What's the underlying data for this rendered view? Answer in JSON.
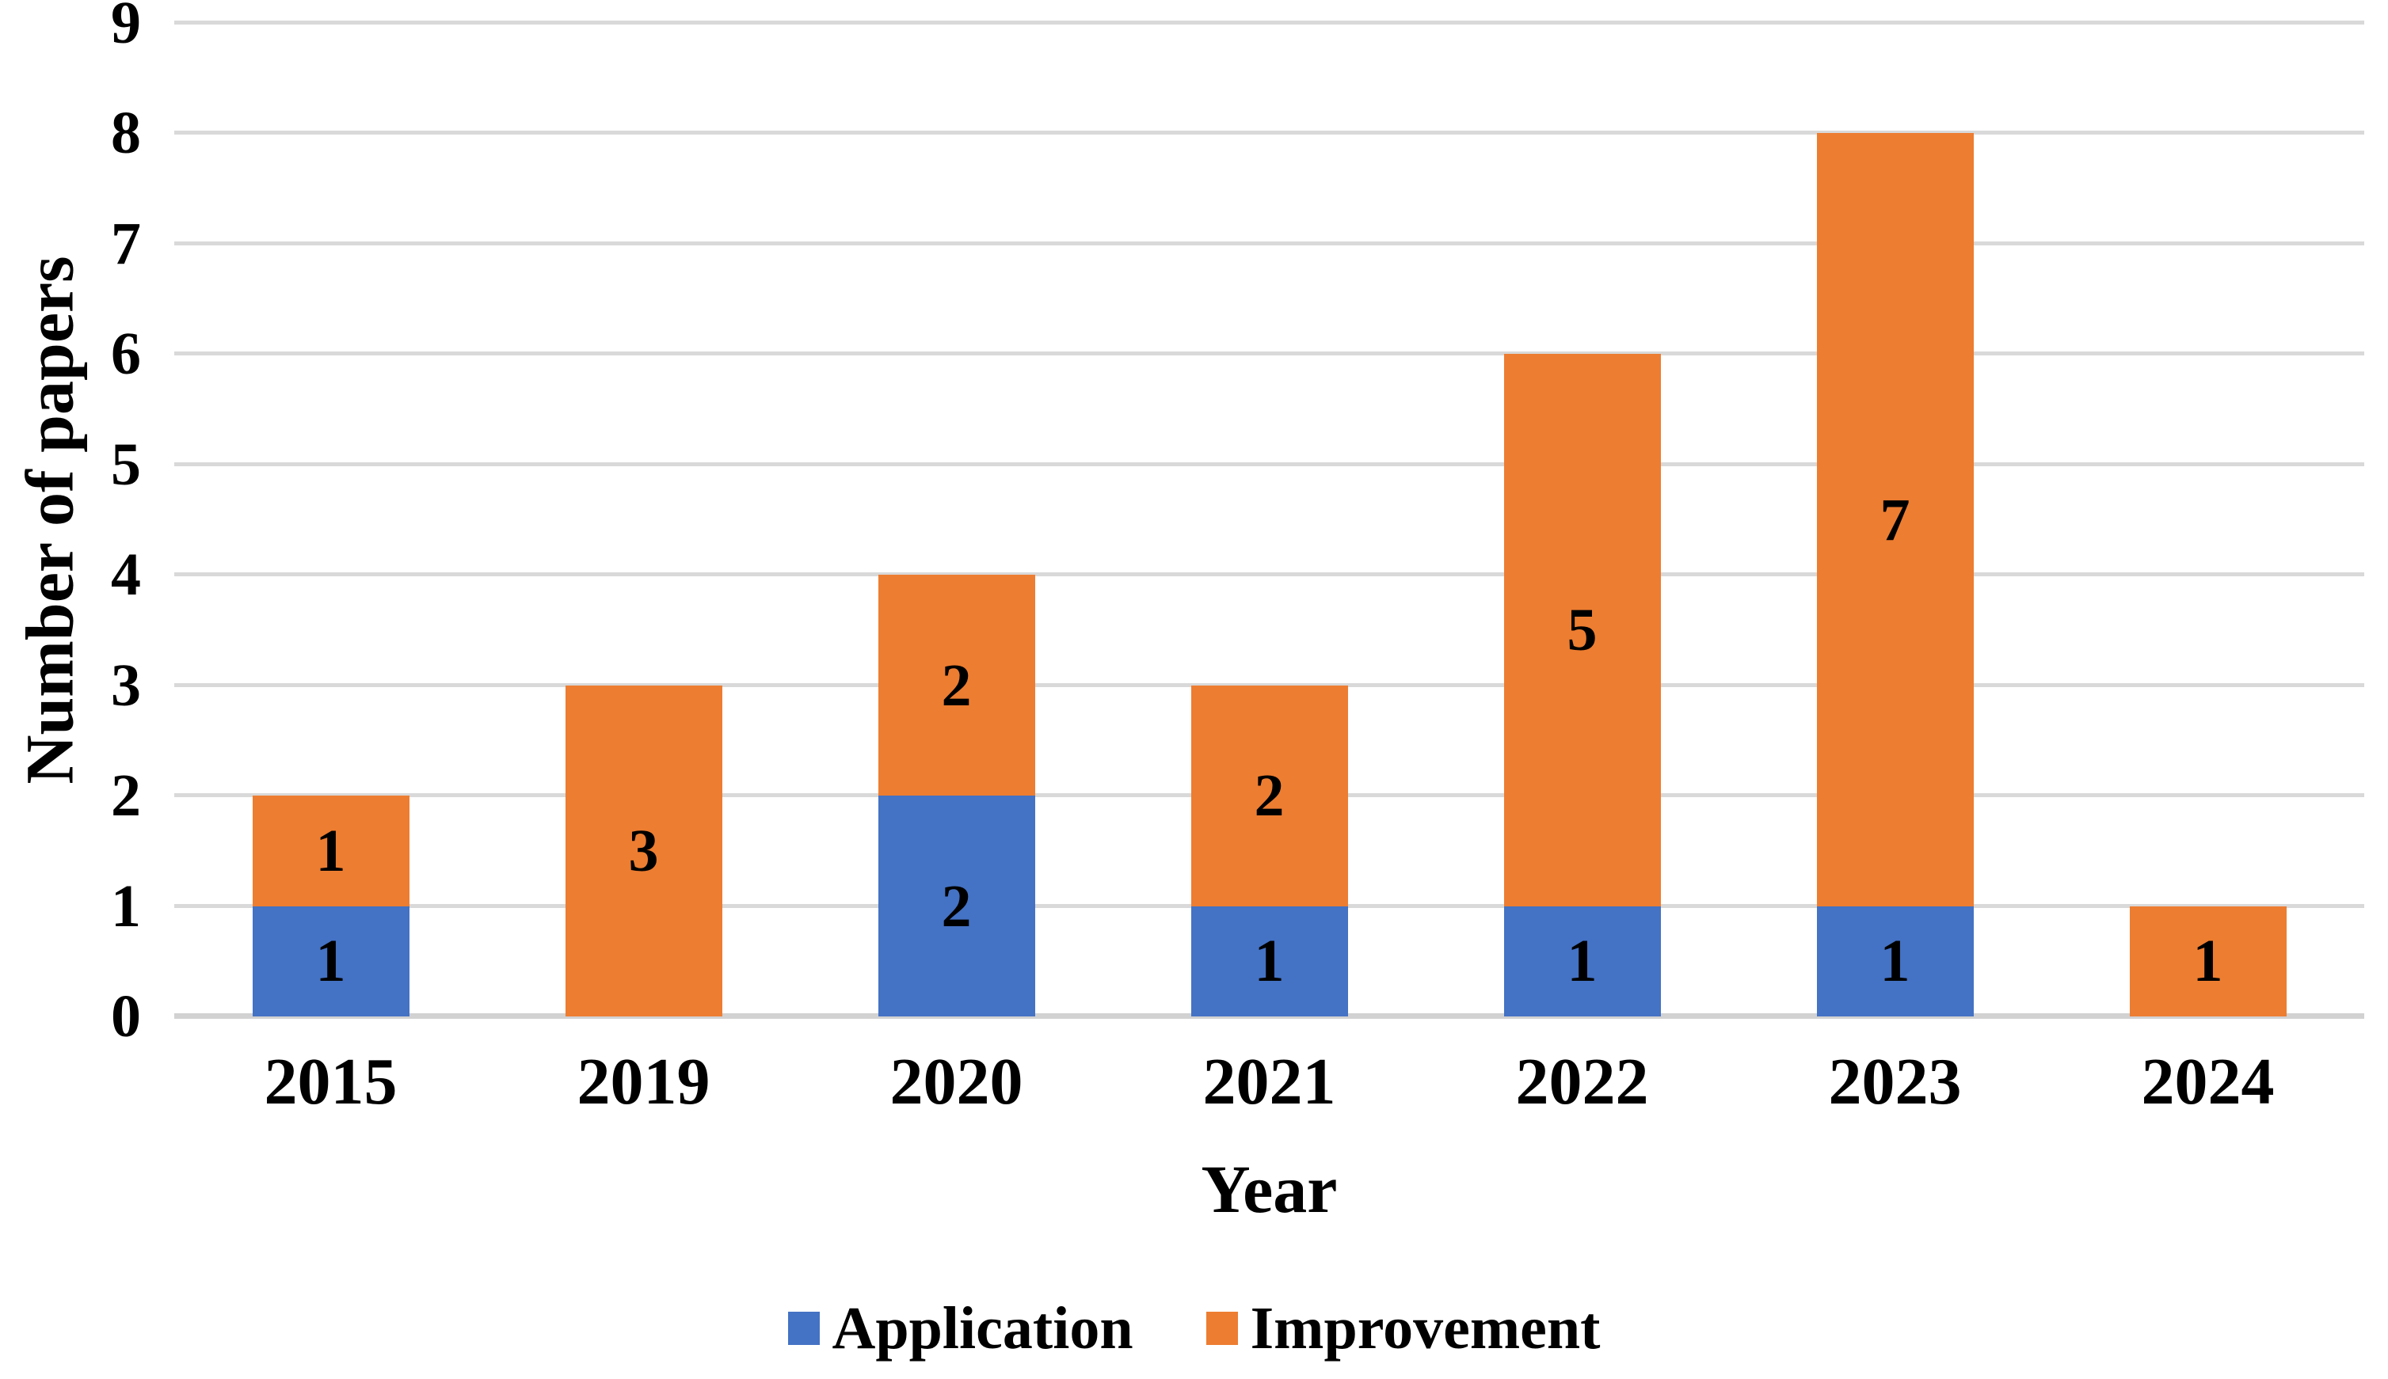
{
  "chart_data": {
    "type": "bar",
    "stacked": true,
    "categories": [
      "2015",
      "2019",
      "2020",
      "2021",
      "2022",
      "2023",
      "2024"
    ],
    "series": [
      {
        "name": "Application",
        "color": "#4472C4",
        "values": [
          1,
          0,
          2,
          1,
          1,
          1,
          0
        ]
      },
      {
        "name": "Improvement",
        "color": "#ED7D31",
        "values": [
          1,
          3,
          2,
          2,
          5,
          7,
          1
        ]
      }
    ],
    "stack_totals": [
      2,
      3,
      4,
      3,
      6,
      8,
      1
    ],
    "xlabel": "Year",
    "ylabel": "Number of papers",
    "ylim": [
      0,
      9
    ],
    "ytick_step": 1,
    "yticks": [
      "0",
      "1",
      "2",
      "3",
      "4",
      "5",
      "6",
      "7",
      "8",
      "9"
    ],
    "grid": "horizontal",
    "gridline_color": "#D9D9D9",
    "baseline_color": "#D2D2D2",
    "data_labels": true,
    "data_label_color": "#000000",
    "legend_position": "bottom",
    "background": "#FFFFFF"
  }
}
